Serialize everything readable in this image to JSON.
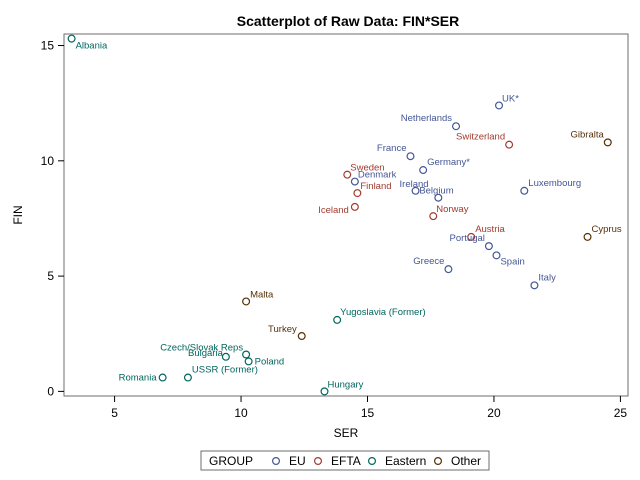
{
  "chart_data": {
    "type": "scatter",
    "title": "Scatterplot of Raw Data: FIN*SER",
    "xlabel": "SER",
    "ylabel": "FIN",
    "xlim": [
      3,
      25.3
    ],
    "ylim": [
      -0.2,
      15.5
    ],
    "xticks": [
      5,
      10,
      15,
      20,
      25
    ],
    "yticks": [
      0,
      5,
      10,
      15
    ],
    "legend": {
      "title": "GROUP",
      "placement": "bottom",
      "entries": [
        "EU",
        "EFTA",
        "Eastern",
        "Other"
      ]
    },
    "group_colors": {
      "EU": "#445694",
      "EFTA": "#A23A2E",
      "Eastern": "#01665E",
      "Other": "#543005"
    },
    "points": [
      {
        "label": "Albania",
        "group": "Eastern",
        "x": 3.3,
        "y": 15.3
      },
      {
        "label": "UK*",
        "group": "EU",
        "x": 20.2,
        "y": 12.4
      },
      {
        "label": "Netherlands",
        "group": "EU",
        "x": 18.5,
        "y": 11.5
      },
      {
        "label": "Switzerland",
        "group": "EFTA",
        "x": 20.6,
        "y": 10.7
      },
      {
        "label": "Gibralta",
        "group": "Other",
        "x": 24.5,
        "y": 10.8
      },
      {
        "label": "France",
        "group": "EU",
        "x": 16.7,
        "y": 10.2
      },
      {
        "label": "Germany*",
        "group": "EU",
        "x": 17.2,
        "y": 9.6
      },
      {
        "label": "Sweden",
        "group": "EFTA",
        "x": 14.2,
        "y": 9.4
      },
      {
        "label": "Denmark",
        "group": "EU",
        "x": 14.5,
        "y": 9.1
      },
      {
        "label": "Finland",
        "group": "EFTA",
        "x": 14.6,
        "y": 8.6
      },
      {
        "label": "Belgium",
        "group": "EU",
        "x": 17.8,
        "y": 8.4
      },
      {
        "label": "Ireland",
        "group": "EU",
        "x": 16.9,
        "y": 8.7
      },
      {
        "label": "Luxembourg",
        "group": "EU",
        "x": 21.2,
        "y": 8.7
      },
      {
        "label": "Iceland",
        "group": "EFTA",
        "x": 14.5,
        "y": 8.0
      },
      {
        "label": "Norway",
        "group": "EFTA",
        "x": 17.6,
        "y": 7.6
      },
      {
        "label": "Austria",
        "group": "EFTA",
        "x": 19.1,
        "y": 6.7
      },
      {
        "label": "Cyprus",
        "group": "Other",
        "x": 23.7,
        "y": 6.7
      },
      {
        "label": "Portugal",
        "group": "EU",
        "x": 19.8,
        "y": 6.3
      },
      {
        "label": "Greece",
        "group": "EU",
        "x": 18.2,
        "y": 5.3
      },
      {
        "label": "Spain",
        "group": "EU",
        "x": 20.1,
        "y": 5.9
      },
      {
        "label": "Italy",
        "group": "EU",
        "x": 21.6,
        "y": 4.6
      },
      {
        "label": "Malta",
        "group": "Other",
        "x": 10.2,
        "y": 3.9
      },
      {
        "label": "Yugoslavia (Former)",
        "group": "Eastern",
        "x": 13.8,
        "y": 3.1
      },
      {
        "label": "Turkey",
        "group": "Other",
        "x": 12.4,
        "y": 2.4
      },
      {
        "label": "Czech/Slovak Reps",
        "group": "Eastern",
        "x": 10.2,
        "y": 1.6
      },
      {
        "label": "Bulgaria",
        "group": "Eastern",
        "x": 9.4,
        "y": 1.5
      },
      {
        "label": "Poland",
        "group": "Eastern",
        "x": 10.3,
        "y": 1.3
      },
      {
        "label": "USSR (Former)",
        "group": "Eastern",
        "x": 7.9,
        "y": 0.6
      },
      {
        "label": "Romania",
        "group": "Eastern",
        "x": 6.9,
        "y": 0.6
      },
      {
        "label": "Hungary",
        "group": "Eastern",
        "x": 13.3,
        "y": 0.0
      }
    ]
  }
}
